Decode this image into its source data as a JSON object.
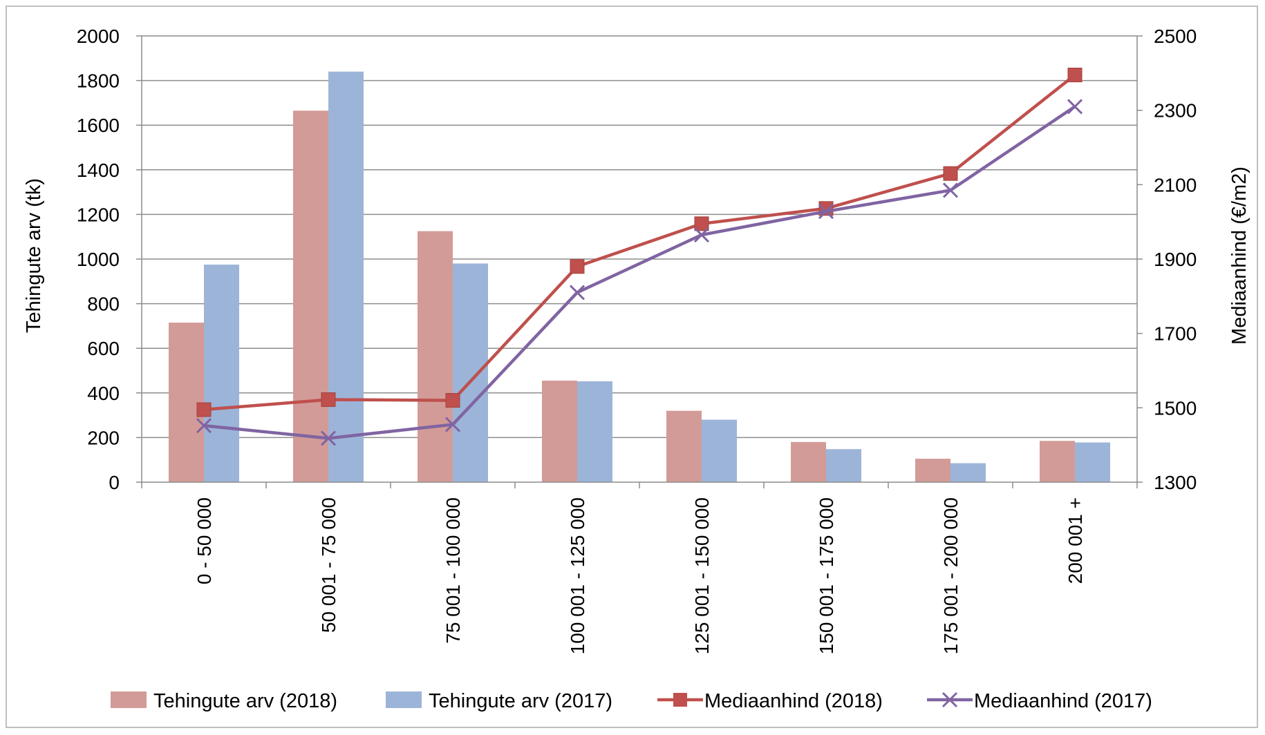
{
  "chart_data": {
    "type": "bar",
    "categories": [
      "0 - 50 000",
      "50 001 - 75 000",
      "75 001 - 100 000",
      "100 001 - 125 000",
      "125 001 - 150 000",
      "150 001 - 175 000",
      "175 001 - 200 000",
      "200 001 +"
    ],
    "series": [
      {
        "name": "Tehingute arv (2018)",
        "type": "bar",
        "axis": "left",
        "color": "#d29b97",
        "values": [
          715,
          1665,
          1125,
          455,
          320,
          180,
          105,
          185
        ]
      },
      {
        "name": "Tehingute arv (2017)",
        "type": "bar",
        "axis": "left",
        "color": "#9cb4d8",
        "values": [
          975,
          1840,
          980,
          452,
          280,
          148,
          85,
          178
        ]
      },
      {
        "name": "Mediaanhind (2018)",
        "type": "line",
        "marker": "square",
        "axis": "right",
        "color": "#bf504d",
        "values": [
          1495,
          1522,
          1520,
          1880,
          1995,
          2036,
          2130,
          2395
        ]
      },
      {
        "name": "Mediaanhind (2017)",
        "type": "line",
        "marker": "x",
        "axis": "right",
        "color": "#8064a2",
        "values": [
          1452,
          1418,
          1455,
          1810,
          1965,
          2028,
          2085,
          2310
        ]
      }
    ],
    "ylabel": "Tehingute arv (tk)",
    "y2label": "Mediaanhind (€/m2)",
    "ylim": [
      0,
      2000
    ],
    "y2lim": [
      1300,
      2500
    ],
    "yticks": [
      "0",
      "200",
      "400",
      "600",
      "800",
      "1000",
      "1200",
      "1400",
      "1600",
      "1800",
      "2000"
    ],
    "y2ticks": [
      "1300",
      "1500",
      "1700",
      "1900",
      "2100",
      "2300",
      "2500"
    ],
    "grid": true,
    "legend": "bottom"
  }
}
